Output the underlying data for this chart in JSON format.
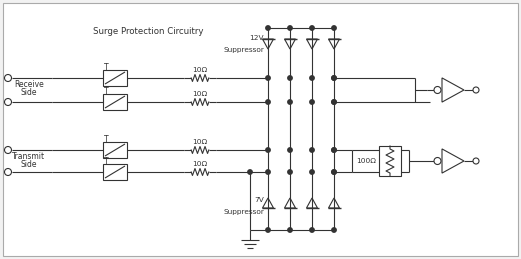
{
  "bg": "#f2f2f2",
  "lc": "#333333",
  "title": "Surge Protection Circuitry",
  "label_receive": [
    "Receive",
    "Side"
  ],
  "label_transmit": [
    "Transmit",
    "Side"
  ],
  "label_12v": [
    "12V",
    "Suppressor"
  ],
  "label_7v": [
    "7V",
    "Suppressor"
  ],
  "label_100r": "100Ω",
  "label_10r": "10Ω"
}
